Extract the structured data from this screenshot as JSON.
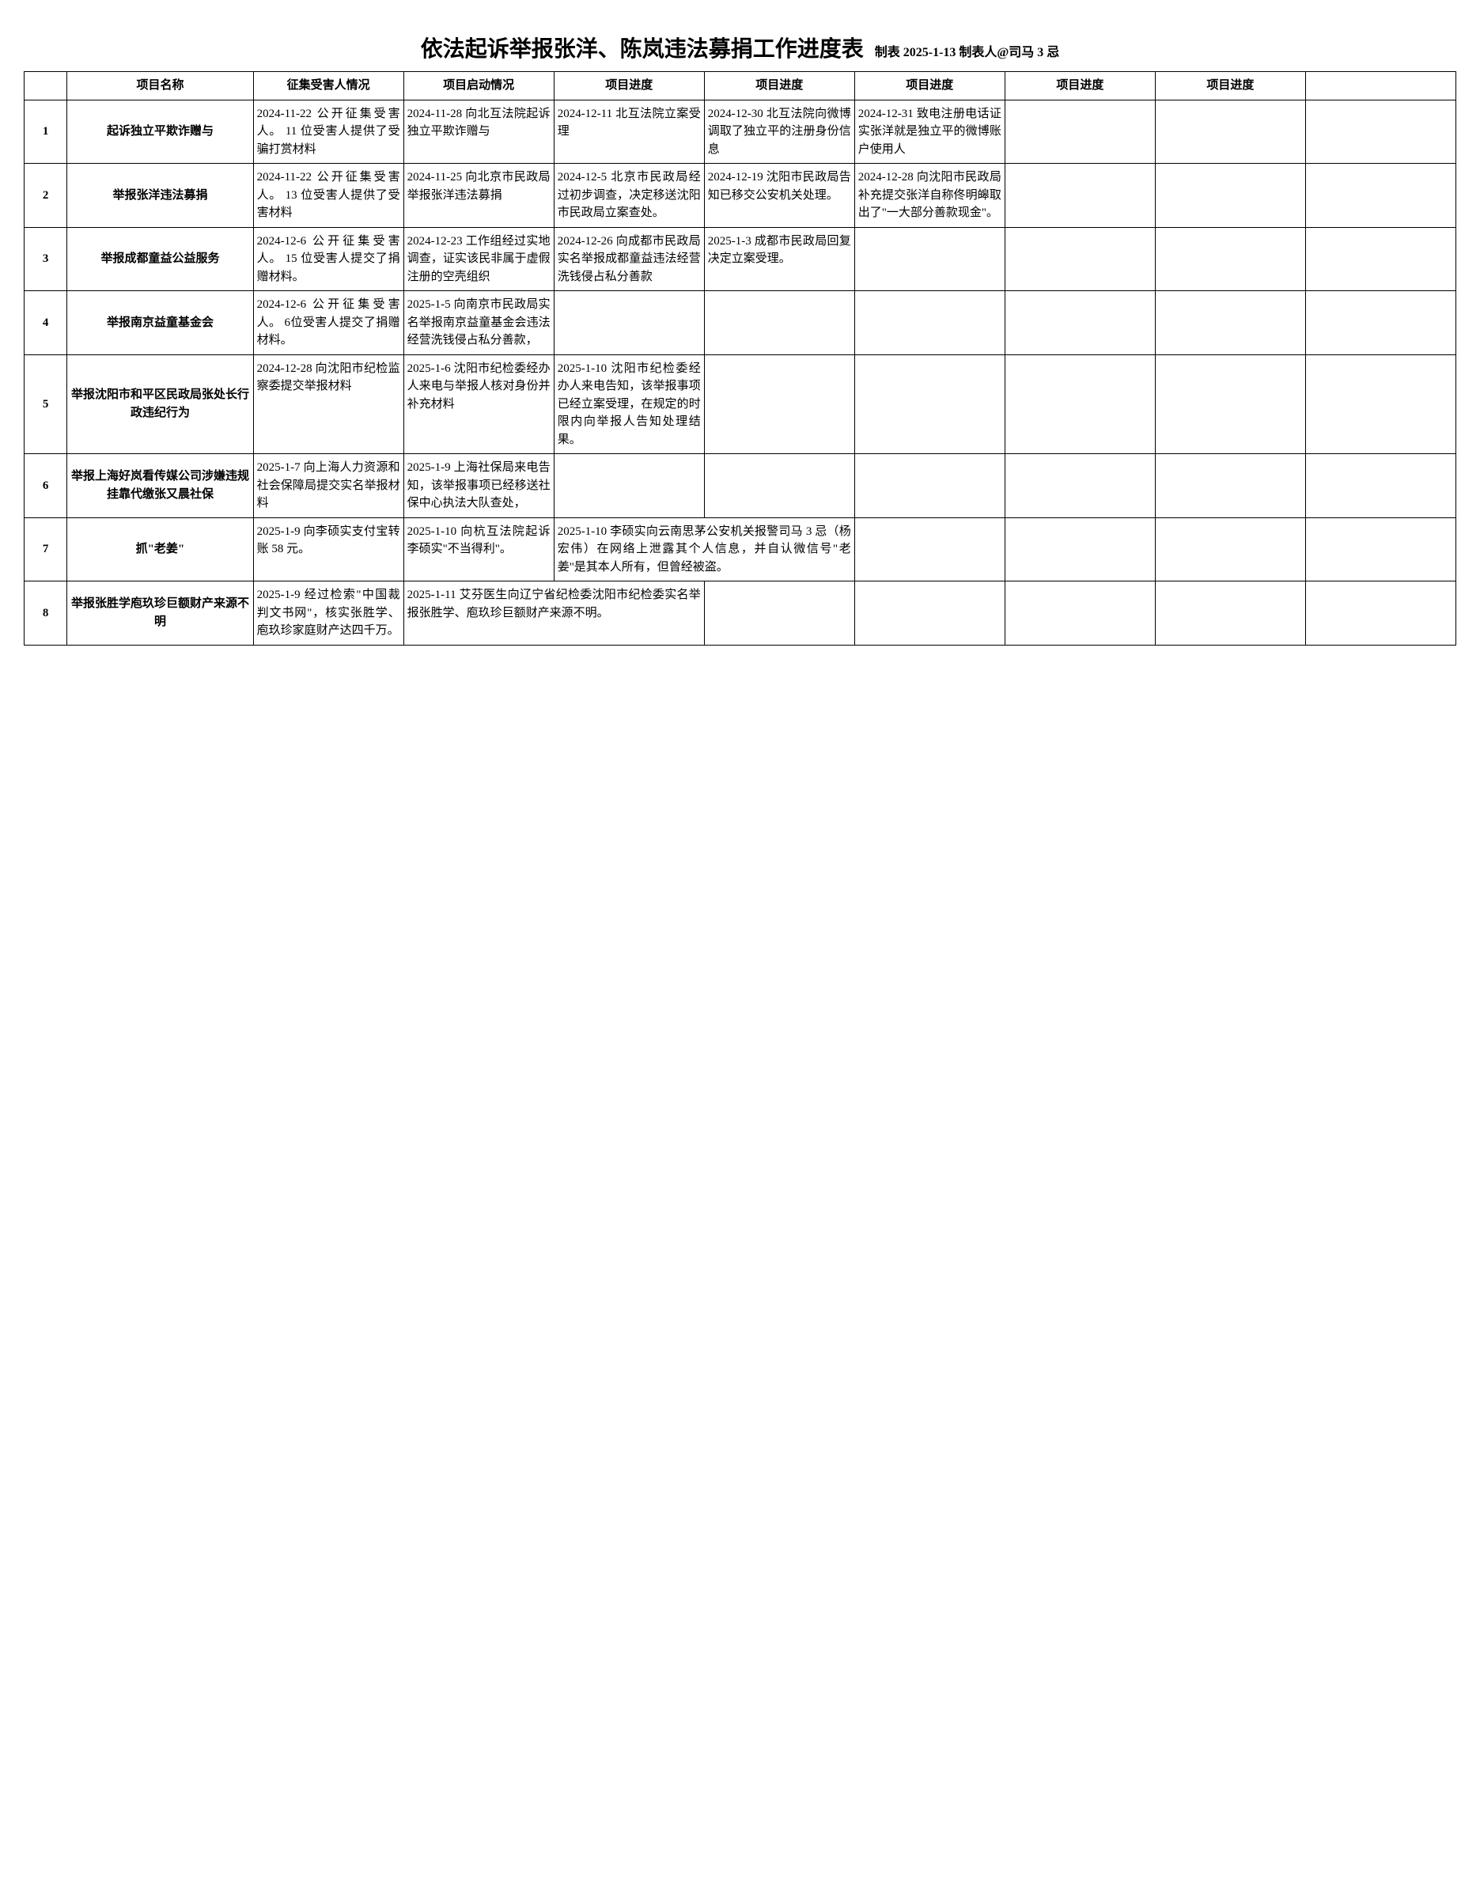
{
  "title": "依法起诉举报张洋、陈岚违法募捐工作进度表",
  "subtitle": "制表 2025-1-13 制表人@司马 3 忌",
  "headers": [
    "",
    "项目名称",
    "征集受害人情况",
    "项目启动情况",
    "项目进度",
    "项目进度",
    "项目进度",
    "项目进度",
    "项目进度",
    ""
  ],
  "rows": [
    {
      "idx": "1",
      "name": "起诉独立平欺诈赠与",
      "cells": [
        "2024-11-22 公开征集受害人。\n11 位受害人提供了受骗打赏材料",
        "2024-11-28 向北互法院起诉独立平欺诈赠与",
        "2024-12-11 北互法院立案受理",
        "2024-12-30 北互法院向微博调取了独立平的注册身份信息",
        "2024-12-31 致电注册电话证实张洋就是独立平的微博账户使用人",
        "",
        "",
        ""
      ]
    },
    {
      "idx": "2",
      "name": "举报张洋违法募捐",
      "cells": [
        "2024-11-22 公开征集受害人。\n13 位受害人提供了受害材料",
        "2024-11-25 向北京市民政局举报张洋违法募捐",
        "2024-12-5 北京市民政局经过初步调查，决定移送沈阳市民政局立案查处。",
        "2024-12-19 沈阳市民政局告知已移交公安机关处理。",
        "2024-12-28 向沈阳市民政局补充提交张洋自称佟明皞取出了\"一大部分善款现金\"。",
        "",
        "",
        ""
      ]
    },
    {
      "idx": "3",
      "name": "举报成都童益公益服务",
      "cells": [
        "2024-12-6 公开征集受害人。\n15 位受害人提交了捐赠材料。",
        "2024-12-23 工作组经过实地调查，证实该民非属于虚假注册的空壳组织",
        "2024-12-26 向成都市民政局实名举报成都童益违法经营洗钱侵占私分善款",
        "2025-1-3 成都市民政局回复决定立案受理。",
        "",
        "",
        "",
        ""
      ]
    },
    {
      "idx": "4",
      "name": "举报南京益童基金会",
      "cells": [
        "2024-12-6 公开征集受害人。\n6位受害人提交了捐赠材料。",
        "2025-1-5 向南京市民政局实名举报南京益童基金会违法经营洗钱侵占私分善款，",
        "",
        "",
        "",
        "",
        "",
        ""
      ]
    },
    {
      "idx": "5",
      "name": "举报沈阳市和平区民政局张处长行政违纪行为",
      "cells": [
        "2024-12-28 向沈阳市纪检监察委提交举报材料",
        "2025-1-6 沈阳市纪检委经办人来电与举报人核对身份并补充材料",
        "2025-1-10 沈阳市纪检委经办人来电告知，该举报事项已经立案受理，在规定的时限内向举报人告知处理结果。",
        "",
        "",
        "",
        "",
        ""
      ]
    },
    {
      "idx": "6",
      "name": "举报上海好岚看传媒公司涉嫌违规挂靠代缴张又晨社保",
      "cells": [
        "2025-1-7 向上海人力资源和社会保障局提交实名举报材料",
        "2025-1-9 上海社保局来电告知，该举报事项已经移送社保中心执法大队查处，",
        "",
        "",
        "",
        "",
        "",
        ""
      ]
    },
    {
      "idx": "7",
      "name": "抓\"老姜\"",
      "cells": [
        "2025-1-9 向李硕实支付宝转账 58 元。",
        "2025-1-10 向杭互法院起诉李硕实\"不当得利\"。",
        "__SPAN2__2025-1-10 李硕实向云南思茅公安机关报警司马 3 忌（杨宏伟）在网络上泄露其个人信息，并自认微信号\"老姜\"是其本人所有，但曾经被盗。",
        null,
        "",
        "",
        "",
        ""
      ]
    },
    {
      "idx": "8",
      "name": "举报张胜学庖玖珍巨额财产来源不明",
      "cells": [
        "2025-1-9 经过检索\"中国裁判文书网\"，核实张胜学、庖玖珍家庭财产达四千万。",
        "__SPAN2__2025-1-11 艾芬医生向辽宁省纪检委沈阳市纪检委实名举报张胜学、庖玖珍巨额财产来源不明。",
        null,
        "",
        "",
        "",
        "",
        ""
      ]
    }
  ]
}
